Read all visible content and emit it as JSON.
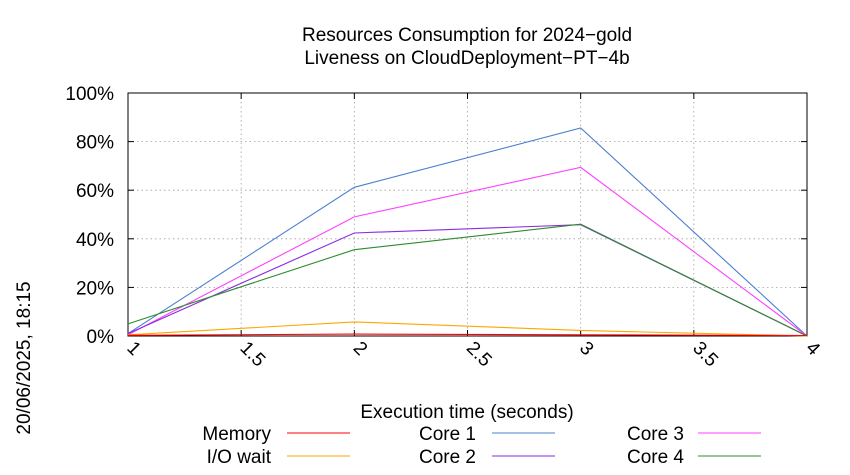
{
  "chart_data": {
    "type": "line",
    "title": "Resources Consumption for 2024−gold",
    "subtitle": "Liveness on CloudDeployment−PT−4b",
    "xlabel": "Execution time (seconds)",
    "ylabel": "",
    "side_label": "20/06/2025, 18:15",
    "xlim": [
      1,
      4
    ],
    "ylim": [
      0,
      100
    ],
    "x_ticks": [
      1,
      1.5,
      2,
      2.5,
      3,
      3.5,
      4
    ],
    "x_tick_labels": [
      "1",
      "1.5",
      "2",
      "2.5",
      "3",
      "3.5",
      "4"
    ],
    "y_ticks": [
      0,
      20,
      40,
      60,
      80,
      100
    ],
    "y_tick_labels": [
      "0%",
      "20%",
      "40%",
      "60%",
      "80%",
      "100%"
    ],
    "grid": true,
    "legend_position": "bottom",
    "series": [
      {
        "name": "Memory",
        "color": "#ff0000",
        "x": [
          1,
          2,
          3,
          4
        ],
        "y": [
          0.3,
          0.8,
          0.5,
          0.2
        ]
      },
      {
        "name": "I/O wait",
        "color": "#ffa500",
        "x": [
          1,
          2,
          3,
          4
        ],
        "y": [
          0.5,
          5.8,
          2.3,
          0.0
        ]
      },
      {
        "name": "Core 1",
        "color": "#4a7fd0",
        "x": [
          1,
          2,
          3,
          4
        ],
        "y": [
          1.0,
          61.2,
          85.6,
          0.0
        ]
      },
      {
        "name": "Core 2",
        "color": "#8a2be2",
        "x": [
          1,
          2,
          3,
          4
        ],
        "y": [
          1.0,
          42.4,
          45.8,
          0.0
        ]
      },
      {
        "name": "Core 3",
        "color": "#ff40ff",
        "x": [
          1,
          2,
          3,
          4
        ],
        "y": [
          0.5,
          49.0,
          69.4,
          0.0
        ]
      },
      {
        "name": "Core 4",
        "color": "#2e8b2e",
        "x": [
          1,
          2,
          3,
          4
        ],
        "y": [
          5.0,
          35.5,
          46.0,
          0.0
        ]
      }
    ]
  }
}
